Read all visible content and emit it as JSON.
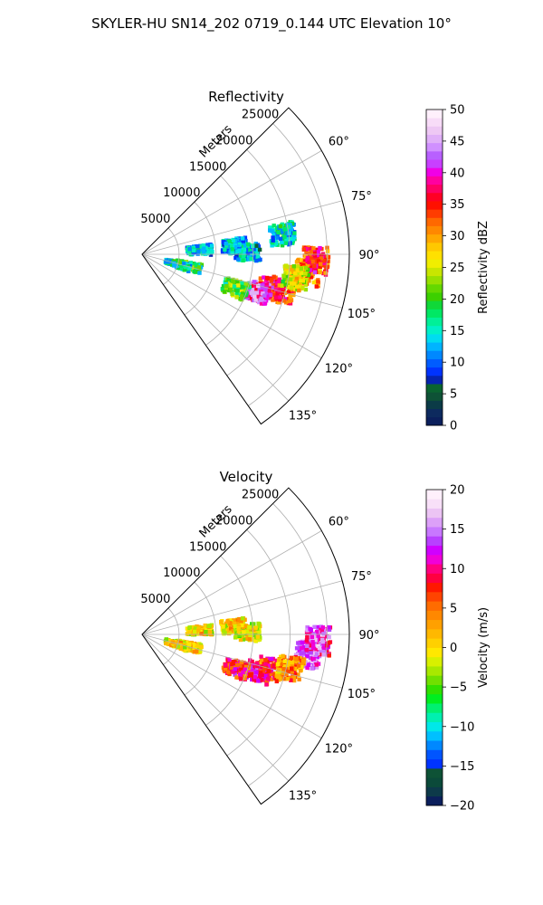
{
  "suptitle": "SKYLER-HU  SN14_202  0719_0.144 UTC Elevation 10°",
  "chart_data": [
    {
      "type": "heatmap",
      "projection": "polar-sector",
      "title": "Reflectivity",
      "radial_label": "Meters",
      "r_lim": [
        0,
        28000
      ],
      "theta_lim_deg": [
        45,
        145
      ],
      "r_ticks": [
        5000,
        10000,
        15000,
        20000,
        25000
      ],
      "r_tick_labels": [
        "5000",
        "10000",
        "15000",
        "20000",
        "25000"
      ],
      "theta_ticks_deg": [
        60,
        75,
        90,
        105,
        120,
        135
      ],
      "theta_tick_labels": [
        "60°",
        "75°",
        "90°",
        "105°",
        "120°",
        "135°"
      ],
      "grid": true,
      "colorbar": {
        "label": "Reflectivity dBZ",
        "vmin": 0,
        "vmax": 50,
        "ticks": [
          0,
          5,
          10,
          15,
          20,
          25,
          30,
          35,
          40,
          45,
          50
        ],
        "tick_labels": [
          "0",
          "5",
          "10",
          "15",
          "20",
          "25",
          "30",
          "35",
          "40",
          "45",
          "50"
        ],
        "colors": [
          "#0b1f5c",
          "#0d2a5e",
          "#0b3b47",
          "#0e5236",
          "#0a6430",
          "#0624b0",
          "#0033ff",
          "#005cff",
          "#0088ff",
          "#00b4ff",
          "#00dcf0",
          "#00f0c8",
          "#00f098",
          "#00e864",
          "#10d838",
          "#3cd000",
          "#64d800",
          "#98e000",
          "#c8e600",
          "#f0ee00",
          "#ffe000",
          "#ffc800",
          "#ffa800",
          "#ff8800",
          "#ff6800",
          "#ff3c00",
          "#ff1000",
          "#ff0024",
          "#ff0064",
          "#ff00a0",
          "#f000e6",
          "#c840ff",
          "#b860ff",
          "#d090ff",
          "#e0b0f8",
          "#eec8f4",
          "#f8dcf8",
          "#fff0fc"
        ]
      },
      "echoes": [
        {
          "az_deg": 105,
          "range_m": 18000,
          "value_dbz": 38
        },
        {
          "az_deg": 104,
          "range_m": 19500,
          "value_dbz": 36
        },
        {
          "az_deg": 108,
          "range_m": 16500,
          "value_dbz": 42
        },
        {
          "az_deg": 96,
          "range_m": 22500,
          "value_dbz": 33
        },
        {
          "az_deg": 92,
          "range_m": 23500,
          "value_dbz": 36
        },
        {
          "az_deg": 99,
          "range_m": 21000,
          "value_dbz": 27
        },
        {
          "az_deg": 110,
          "range_m": 13500,
          "value_dbz": 22
        },
        {
          "az_deg": 104,
          "range_m": 6500,
          "value_dbz": 20
        },
        {
          "az_deg": 106,
          "range_m": 5000,
          "value_dbz": 17
        },
        {
          "az_deg": 86,
          "range_m": 7800,
          "value_dbz": 15
        },
        {
          "az_deg": 85,
          "range_m": 12500,
          "value_dbz": 15
        },
        {
          "az_deg": 89,
          "range_m": 14300,
          "value_dbz": 14
        },
        {
          "az_deg": 82,
          "range_m": 19200,
          "value_dbz": 16
        }
      ]
    },
    {
      "type": "heatmap",
      "projection": "polar-sector",
      "title": "Velocity",
      "radial_label": "Meters",
      "r_lim": [
        0,
        28000
      ],
      "theta_lim_deg": [
        45,
        145
      ],
      "r_ticks": [
        5000,
        10000,
        15000,
        20000,
        25000
      ],
      "r_tick_labels": [
        "5000",
        "10000",
        "15000",
        "20000",
        "25000"
      ],
      "theta_ticks_deg": [
        60,
        75,
        90,
        105,
        120,
        135
      ],
      "theta_tick_labels": [
        "60°",
        "75°",
        "90°",
        "105°",
        "120°",
        "135°"
      ],
      "grid": true,
      "colorbar": {
        "label": "Velocity (m/s)",
        "vmin": -20,
        "vmax": 20,
        "ticks": [
          -20,
          -15,
          -10,
          -5,
          0,
          5,
          10,
          15,
          20
        ],
        "tick_labels": [
          "−20",
          "−15",
          "−10",
          "−5",
          "0",
          "5",
          "10",
          "15",
          "20"
        ],
        "colors": [
          "#0b1f5c",
          "#0d3a4a",
          "#0b4a3a",
          "#0e5236",
          "#0033ff",
          "#0055ff",
          "#0088ff",
          "#00c0ff",
          "#00e8e8",
          "#00f0b0",
          "#00f070",
          "#00ee20",
          "#30e000",
          "#70e000",
          "#a8e800",
          "#d8f000",
          "#ffe800",
          "#ffd000",
          "#ffb800",
          "#ffa000",
          "#ff8800",
          "#ff6c00",
          "#ff4400",
          "#ff1800",
          "#ff0040",
          "#ff0080",
          "#f000d8",
          "#d000ff",
          "#b840ff",
          "#c878ff",
          "#dca0f8",
          "#ecc4f4",
          "#f8e0f8",
          "#fff0fc"
        ]
      },
      "echoes": [
        {
          "az_deg": 105,
          "range_m": 18000,
          "value_ms": 8
        },
        {
          "az_deg": 108,
          "range_m": 16500,
          "value_ms": 11
        },
        {
          "az_deg": 110,
          "range_m": 13500,
          "value_ms": 9
        },
        {
          "az_deg": 97,
          "range_m": 22500,
          "value_ms": 15
        },
        {
          "az_deg": 92,
          "range_m": 23800,
          "value_ms": 14
        },
        {
          "az_deg": 103,
          "range_m": 20500,
          "value_ms": 5
        },
        {
          "az_deg": 104,
          "range_m": 6500,
          "value_ms": 2
        },
        {
          "az_deg": 106,
          "range_m": 5000,
          "value_ms": 1
        },
        {
          "az_deg": 86,
          "range_m": 7800,
          "value_ms": 1
        },
        {
          "az_deg": 85,
          "range_m": 12500,
          "value_ms": 2
        },
        {
          "az_deg": 89,
          "range_m": 14300,
          "value_ms": 0
        }
      ]
    }
  ]
}
